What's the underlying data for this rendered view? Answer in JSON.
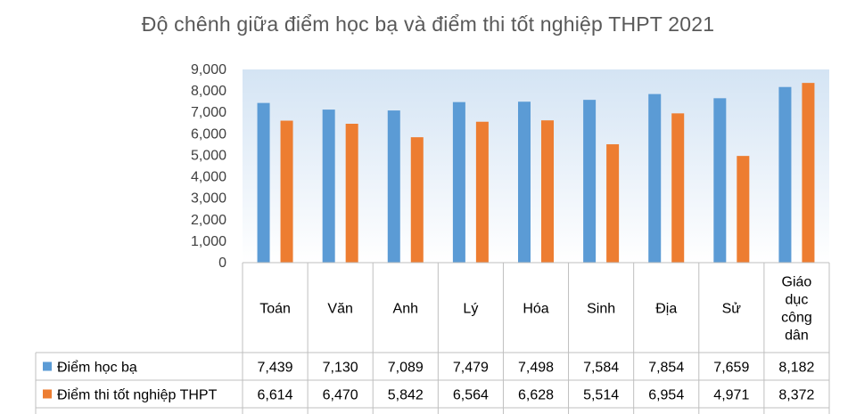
{
  "chart_data": {
    "type": "bar",
    "title": "Độ chênh giữa điểm học bạ và điểm thi tốt nghiệp THPT 2021",
    "categories": [
      "Toán",
      "Văn",
      "Anh",
      "Lý",
      "Hóa",
      "Sinh",
      "Địa",
      "Sử",
      "Giáo dục công dân"
    ],
    "category_lines": [
      [
        "Toán"
      ],
      [
        "Văn"
      ],
      [
        "Anh"
      ],
      [
        "Lý"
      ],
      [
        "Hóa"
      ],
      [
        "Sinh"
      ],
      [
        "Địa"
      ],
      [
        "Sử"
      ],
      [
        "Giáo",
        "dục",
        "công",
        "dân"
      ]
    ],
    "series": [
      {
        "name": "Điểm học bạ",
        "color": "#5B9BD5",
        "values": [
          7.439,
          7.13,
          7.089,
          7.479,
          7.498,
          7.584,
          7.854,
          7.659,
          8.182
        ],
        "labels": [
          "7,439",
          "7,130",
          "7,089",
          "7,479",
          "7,498",
          "7,584",
          "7,854",
          "7,659",
          "8,182"
        ]
      },
      {
        "name": "Điểm thi tốt nghiệp THPT",
        "color": "#ED7D31",
        "values": [
          6.614,
          6.47,
          5.842,
          6.564,
          6.628,
          5.514,
          6.954,
          4.971,
          8.372
        ],
        "labels": [
          "6,614",
          "6,470",
          "5,842",
          "6,564",
          "6,628",
          "5,514",
          "6,954",
          "4,971",
          "8,372"
        ]
      }
    ],
    "yticks": [
      "0",
      "1,000",
      "2,000",
      "3,000",
      "4,000",
      "5,000",
      "6,000",
      "7,000",
      "8,000",
      "9,000"
    ],
    "ylim": [
      0,
      9
    ],
    "grid": false,
    "data_table": true,
    "background": "gradient light blue"
  }
}
